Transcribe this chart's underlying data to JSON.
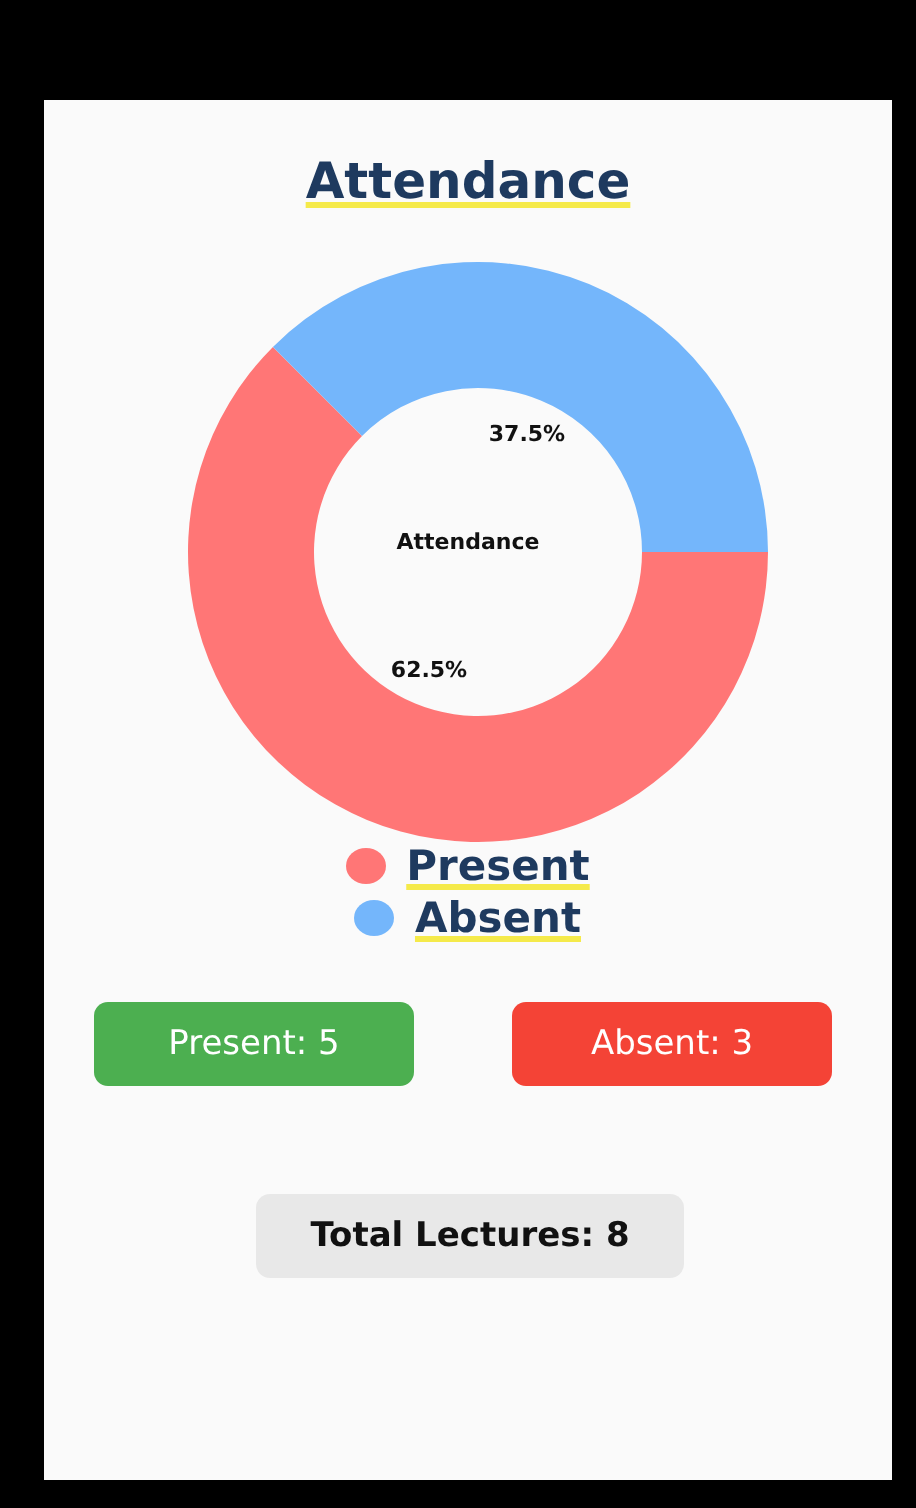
{
  "chart_data": {
    "type": "donut",
    "title": "Attendance",
    "categories": [
      "Present",
      "Absent"
    ],
    "values": [
      62.5,
      37.5
    ],
    "colors": [
      "#ff7676",
      "#74b6fb"
    ],
    "value_labels": [
      "62.5%",
      "37.5%"
    ],
    "legend": "bottom",
    "annotations": [
      "Attendance",
      "Present: 5",
      "Absent: 3",
      "Total Lectures: 8"
    ]
  }
}
